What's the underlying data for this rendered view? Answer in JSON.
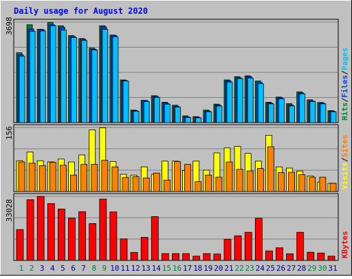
{
  "title": "Daily usage for August 2020",
  "colors": {
    "background": "#c0c0c0",
    "title": "#0000ff",
    "hits": "#008040",
    "files": "#0040ff",
    "pages": "#00c0ff",
    "visits": "#ffff00",
    "sites": "#ff8000",
    "kbytes": "#ff0000",
    "weekend_label": "#008040",
    "weekday_label": "#000080",
    "grid": "#808080"
  },
  "chart_data": [
    {
      "type": "bar",
      "panel": "top",
      "ymax_label": "3698",
      "ymax": 3698,
      "legend": [
        {
          "text": "Hits",
          "color": "#008040"
        },
        {
          "text": "/",
          "color": "#000000"
        },
        {
          "text": "Files",
          "color": "#0040ff"
        },
        {
          "text": "/",
          "color": "#000000"
        },
        {
          "text": "Pages",
          "color": "#00c0ff"
        }
      ],
      "series": [
        {
          "name": "Hits",
          "values": [
            2570,
            3600,
            3430,
            3680,
            3560,
            3200,
            3090,
            2740,
            3560,
            3220,
            1570,
            460,
            820,
            990,
            750,
            640,
            250,
            220,
            460,
            680,
            1570,
            1690,
            1720,
            1530,
            750,
            940,
            700,
            1130,
            840,
            740,
            440
          ]
        },
        {
          "name": "Files",
          "values": [
            2490,
            3440,
            3420,
            3600,
            3500,
            3170,
            3070,
            2700,
            3520,
            3200,
            1550,
            440,
            810,
            960,
            710,
            600,
            210,
            200,
            430,
            650,
            1540,
            1650,
            1690,
            1480,
            720,
            910,
            650,
            1090,
            800,
            720,
            420
          ]
        },
        {
          "name": "Pages",
          "values": [
            2440,
            3360,
            3370,
            3560,
            3400,
            3130,
            3020,
            2670,
            3430,
            3150,
            1530,
            420,
            770,
            930,
            680,
            570,
            190,
            180,
            400,
            610,
            1490,
            1620,
            1640,
            1430,
            690,
            880,
            610,
            1060,
            780,
            690,
            400
          ]
        }
      ]
    },
    {
      "type": "bar",
      "panel": "middle",
      "ymax_label": "156",
      "ymax": 156,
      "legend": [
        {
          "text": "Visits",
          "color": "#ffff00"
        },
        {
          "text": "/",
          "color": "#000000"
        },
        {
          "text": "Sites",
          "color": "#ff8000"
        }
      ],
      "series": [
        {
          "name": "Visits",
          "values": [
            75,
            96,
            75,
            72,
            79,
            72,
            89,
            150,
            155,
            73,
            42,
            40,
            60,
            42,
            74,
            74,
            51,
            74,
            52,
            94,
            106,
            110,
            93,
            74,
            137,
            60,
            57,
            50,
            38,
            23,
            20
          ]
        },
        {
          "name": "Sites",
          "values": [
            72,
            69,
            63,
            71,
            64,
            40,
            66,
            66,
            76,
            60,
            34,
            36,
            33,
            45,
            28,
            73,
            66,
            24,
            40,
            35,
            72,
            54,
            50,
            56,
            109,
            46,
            47,
            41,
            35,
            35,
            20
          ]
        }
      ]
    },
    {
      "type": "bar",
      "panel": "bottom",
      "ymax_label": "33028",
      "ymax": 33028,
      "legend": [
        {
          "text": "KBytes",
          "color": "#ff0000"
        }
      ],
      "series": [
        {
          "name": "KBytes",
          "values": [
            15900,
            31300,
            33000,
            29300,
            26500,
            21800,
            25100,
            19000,
            31600,
            25000,
            11100,
            4100,
            11900,
            22600,
            3500,
            3500,
            3500,
            2200,
            3500,
            3300,
            10900,
            12700,
            14500,
            21700,
            4900,
            6500,
            3400,
            14500,
            4200,
            3800,
            2200
          ]
        }
      ]
    }
  ],
  "x_labels": {
    "days": [
      "1",
      "2",
      "3",
      "4",
      "5",
      "6",
      "7",
      "8",
      "9",
      "10",
      "11",
      "12",
      "13",
      "14",
      "15",
      "16",
      "17",
      "18",
      "19",
      "20",
      "21",
      "22",
      "23",
      "24",
      "25",
      "26",
      "27",
      "28",
      "29",
      "30",
      "31"
    ],
    "weekend_days": [
      "1",
      "2",
      "8",
      "9",
      "15",
      "16",
      "22",
      "23",
      "29",
      "30"
    ]
  }
}
